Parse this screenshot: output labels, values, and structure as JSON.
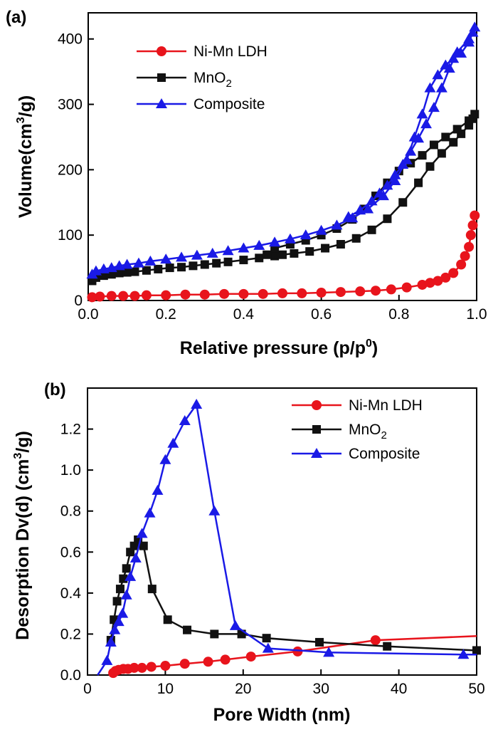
{
  "chart_data": [
    {
      "type": "line",
      "panel_label": "(a)",
      "xlabel_main": "Relative pressure (p/p",
      "xlabel_sup": "0",
      "xlabel_end": ")",
      "ylabel_main": "Volume(cm",
      "ylabel_sup": "3",
      "ylabel_end": "/g)",
      "xlim": [
        0,
        1.0
      ],
      "ylim": [
        0,
        440
      ],
      "xticks": [
        0.0,
        0.2,
        0.4,
        0.6,
        0.8,
        1.0
      ],
      "xtick_labels": [
        "0.0",
        "0.2",
        "0.4",
        "0.6",
        "0.8",
        "1.0"
      ],
      "yticks": [
        0,
        100,
        200,
        300,
        400
      ],
      "ytick_labels": [
        "0",
        "100",
        "200",
        "300",
        "400"
      ],
      "legend_position": "top-left",
      "series": [
        {
          "legend_main": "Ni-Mn LDH",
          "legend_sub": "",
          "marker": "circle",
          "color": "#e8141c",
          "x": [
            0.01,
            0.03,
            0.06,
            0.09,
            0.12,
            0.15,
            0.2,
            0.25,
            0.3,
            0.35,
            0.4,
            0.45,
            0.5,
            0.55,
            0.6,
            0.65,
            0.7,
            0.74,
            0.78,
            0.82,
            0.86,
            0.88,
            0.9,
            0.92,
            0.94,
            0.96,
            0.97,
            0.98,
            0.985,
            0.99,
            0.995
          ],
          "y": [
            5,
            6,
            7,
            7,
            7,
            8,
            8,
            9,
            9,
            10,
            10,
            10,
            11,
            11,
            12,
            13,
            14,
            15,
            17,
            20,
            24,
            27,
            30,
            35,
            42,
            55,
            68,
            82,
            100,
            115,
            130
          ]
        },
        {
          "legend_main": "MnO",
          "legend_sub": "2",
          "marker": "square",
          "color": "#111111",
          "x": [
            0.01,
            0.02,
            0.04,
            0.06,
            0.08,
            0.1,
            0.12,
            0.15,
            0.18,
            0.21,
            0.24,
            0.27,
            0.3,
            0.33,
            0.36,
            0.4,
            0.44,
            0.48,
            0.5,
            0.53,
            0.57,
            0.61,
            0.65,
            0.69,
            0.73,
            0.77,
            0.81,
            0.85,
            0.88,
            0.91,
            0.94,
            0.96,
            0.98,
            0.99,
            0.995,
            0.98,
            0.95,
            0.92,
            0.89,
            0.86,
            0.83,
            0.8,
            0.77,
            0.74,
            0.71,
            0.68,
            0.64,
            0.6,
            0.56,
            0.52,
            0.48,
            0.46
          ],
          "y": [
            30,
            35,
            38,
            40,
            42,
            43,
            44,
            46,
            48,
            50,
            51,
            53,
            55,
            57,
            59,
            62,
            65,
            68,
            70,
            72,
            75,
            80,
            86,
            95,
            108,
            125,
            150,
            180,
            205,
            225,
            242,
            255,
            268,
            278,
            285,
            275,
            262,
            250,
            238,
            222,
            210,
            198,
            180,
            160,
            140,
            124,
            110,
            100,
            92,
            86,
            80,
            70
          ]
        },
        {
          "legend_main": "Composite",
          "legend_sub": "",
          "marker": "triangle",
          "color": "#1a1ae6",
          "x": [
            0.01,
            0.02,
            0.04,
            0.06,
            0.08,
            0.1,
            0.13,
            0.16,
            0.2,
            0.24,
            0.28,
            0.32,
            0.36,
            0.4,
            0.44,
            0.48,
            0.52,
            0.56,
            0.6,
            0.64,
            0.68,
            0.72,
            0.76,
            0.79,
            0.82,
            0.84,
            0.86,
            0.88,
            0.9,
            0.92,
            0.94,
            0.96,
            0.98,
            0.99,
            0.995,
            0.98,
            0.95,
            0.93,
            0.91,
            0.89,
            0.87,
            0.85,
            0.83,
            0.81,
            0.79,
            0.77,
            0.75,
            0.73,
            0.7,
            0.67
          ],
          "y": [
            40,
            45,
            48,
            50,
            53,
            55,
            57,
            60,
            63,
            66,
            69,
            72,
            76,
            80,
            84,
            89,
            94,
            100,
            107,
            115,
            126,
            140,
            160,
            183,
            215,
            250,
            285,
            325,
            345,
            360,
            370,
            378,
            395,
            410,
            418,
            400,
            380,
            355,
            325,
            295,
            270,
            248,
            228,
            208,
            192,
            176,
            164,
            152,
            138,
            128
          ]
        }
      ]
    },
    {
      "type": "line",
      "panel_label": "(b)",
      "xlabel_main": "Pore Width (nm)",
      "xlabel_sup": "",
      "xlabel_end": "",
      "ylabel_main": "Desorption Dv(d) (cm",
      "ylabel_sup": "3",
      "ylabel_end": "/g)",
      "xlim": [
        0,
        50
      ],
      "ylim": [
        0,
        1.4
      ],
      "xticks": [
        0,
        10,
        20,
        30,
        40,
        50
      ],
      "xtick_labels": [
        "0",
        "10",
        "20",
        "30",
        "40",
        "50"
      ],
      "yticks": [
        0.0,
        0.2,
        0.4,
        0.6,
        0.8,
        1.0,
        1.2
      ],
      "ytick_labels": [
        "0.0",
        "0.2",
        "0.4",
        "0.6",
        "0.8",
        "1.0",
        "1.2"
      ],
      "legend_position": "top-right",
      "series": [
        {
          "legend_main": "Ni-Mn LDH",
          "legend_sub": "",
          "marker": "circle",
          "color": "#e8141c",
          "x": [
            3.3,
            3.6,
            4.0,
            4.6,
            5.2,
            6.0,
            7.0,
            8.2,
            10.0,
            12.5,
            15.5,
            17.7,
            21.0,
            27.0,
            37.0,
            50.0
          ],
          "y": [
            0.01,
            0.02,
            0.025,
            0.03,
            0.03,
            0.035,
            0.035,
            0.04,
            0.045,
            0.055,
            0.065,
            0.075,
            0.09,
            0.115,
            0.17,
            0.19
          ],
          "marker_idx": [
            0,
            1,
            2,
            3,
            4,
            5,
            6,
            7,
            8,
            9,
            10,
            11,
            12,
            13,
            14
          ]
        },
        {
          "legend_main": "MnO",
          "legend_sub": "2",
          "marker": "square",
          "color": "#111111",
          "x": [
            3.0,
            3.4,
            3.8,
            4.2,
            4.6,
            5.0,
            5.5,
            6.0,
            6.5,
            7.2,
            8.3,
            10.3,
            12.8,
            16.3,
            19.8,
            23.0,
            29.8,
            38.5,
            50.0
          ],
          "y": [
            0.17,
            0.27,
            0.36,
            0.42,
            0.47,
            0.52,
            0.6,
            0.63,
            0.66,
            0.63,
            0.42,
            0.27,
            0.22,
            0.2,
            0.2,
            0.18,
            0.16,
            0.14,
            0.12
          ]
        },
        {
          "legend_main": "Composite",
          "legend_sub": "",
          "marker": "triangle",
          "color": "#1a1ae6",
          "x": [
            1.3,
            2.0,
            2.5,
            3.0,
            3.5,
            4.0,
            4.5,
            5.0,
            5.5,
            6.2,
            7.0,
            8.0,
            9.0,
            10.0,
            11.0,
            12.5,
            14.0,
            16.3,
            19.0,
            23.2,
            31.0,
            48.3,
            50.0
          ],
          "y": [
            0.0,
            0.04,
            0.07,
            0.16,
            0.22,
            0.26,
            0.3,
            0.39,
            0.48,
            0.57,
            0.69,
            0.79,
            0.9,
            1.05,
            1.13,
            1.24,
            1.32,
            0.8,
            0.24,
            0.13,
            0.11,
            0.1,
            0.1
          ],
          "marker_idx": [
            2,
            3,
            4,
            5,
            6,
            7,
            8,
            9,
            10,
            11,
            12,
            13,
            14,
            15,
            16,
            17,
            18,
            19,
            20,
            21
          ]
        }
      ]
    }
  ]
}
